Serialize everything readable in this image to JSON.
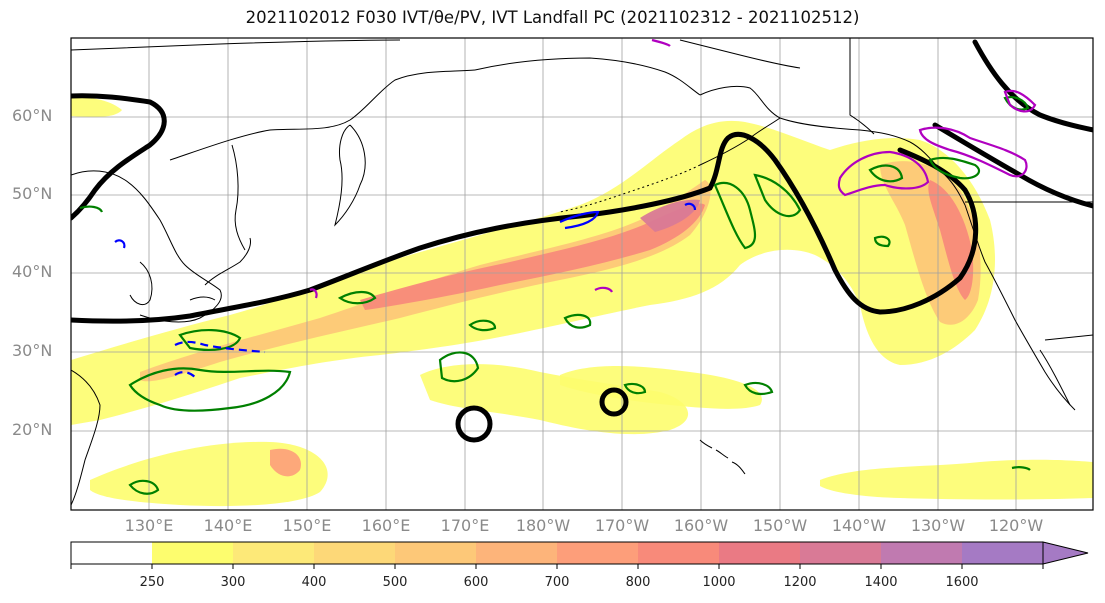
{
  "title": "2021102012 F030 IVT/θe/PV, IVT Landfall PC (2021102312 - 2021102512)",
  "lat_labels": [
    "60°N",
    "50°N",
    "40°N",
    "30°N",
    "20°N"
  ],
  "lon_labels": [
    "130°E",
    "140°E",
    "150°E",
    "160°E",
    "170°E",
    "180°W",
    "170°W",
    "160°W",
    "150°W",
    "140°W",
    "130°W",
    "120°W"
  ],
  "colorbar": {
    "levels": [
      "250",
      "300",
      "400",
      "500",
      "600",
      "700",
      "800",
      "1000",
      "1200",
      "1400",
      "1600"
    ],
    "colors": [
      "#ffffff",
      "#fdfd6e",
      "#fde978",
      "#fdd878",
      "#fdc878",
      "#fdb47a",
      "#fd9e7a",
      "#f88a7a",
      "#ea7a84",
      "#d97a96",
      "#c07ab0",
      "#a57ac4"
    ]
  },
  "colors": {
    "theta_e_contour": "#000000",
    "pv_positive": "#008000",
    "pv_negative": "#0000ff",
    "landfall_pc": "#b000c0",
    "coast": "#000000",
    "grid": "#a0a0a0"
  }
}
